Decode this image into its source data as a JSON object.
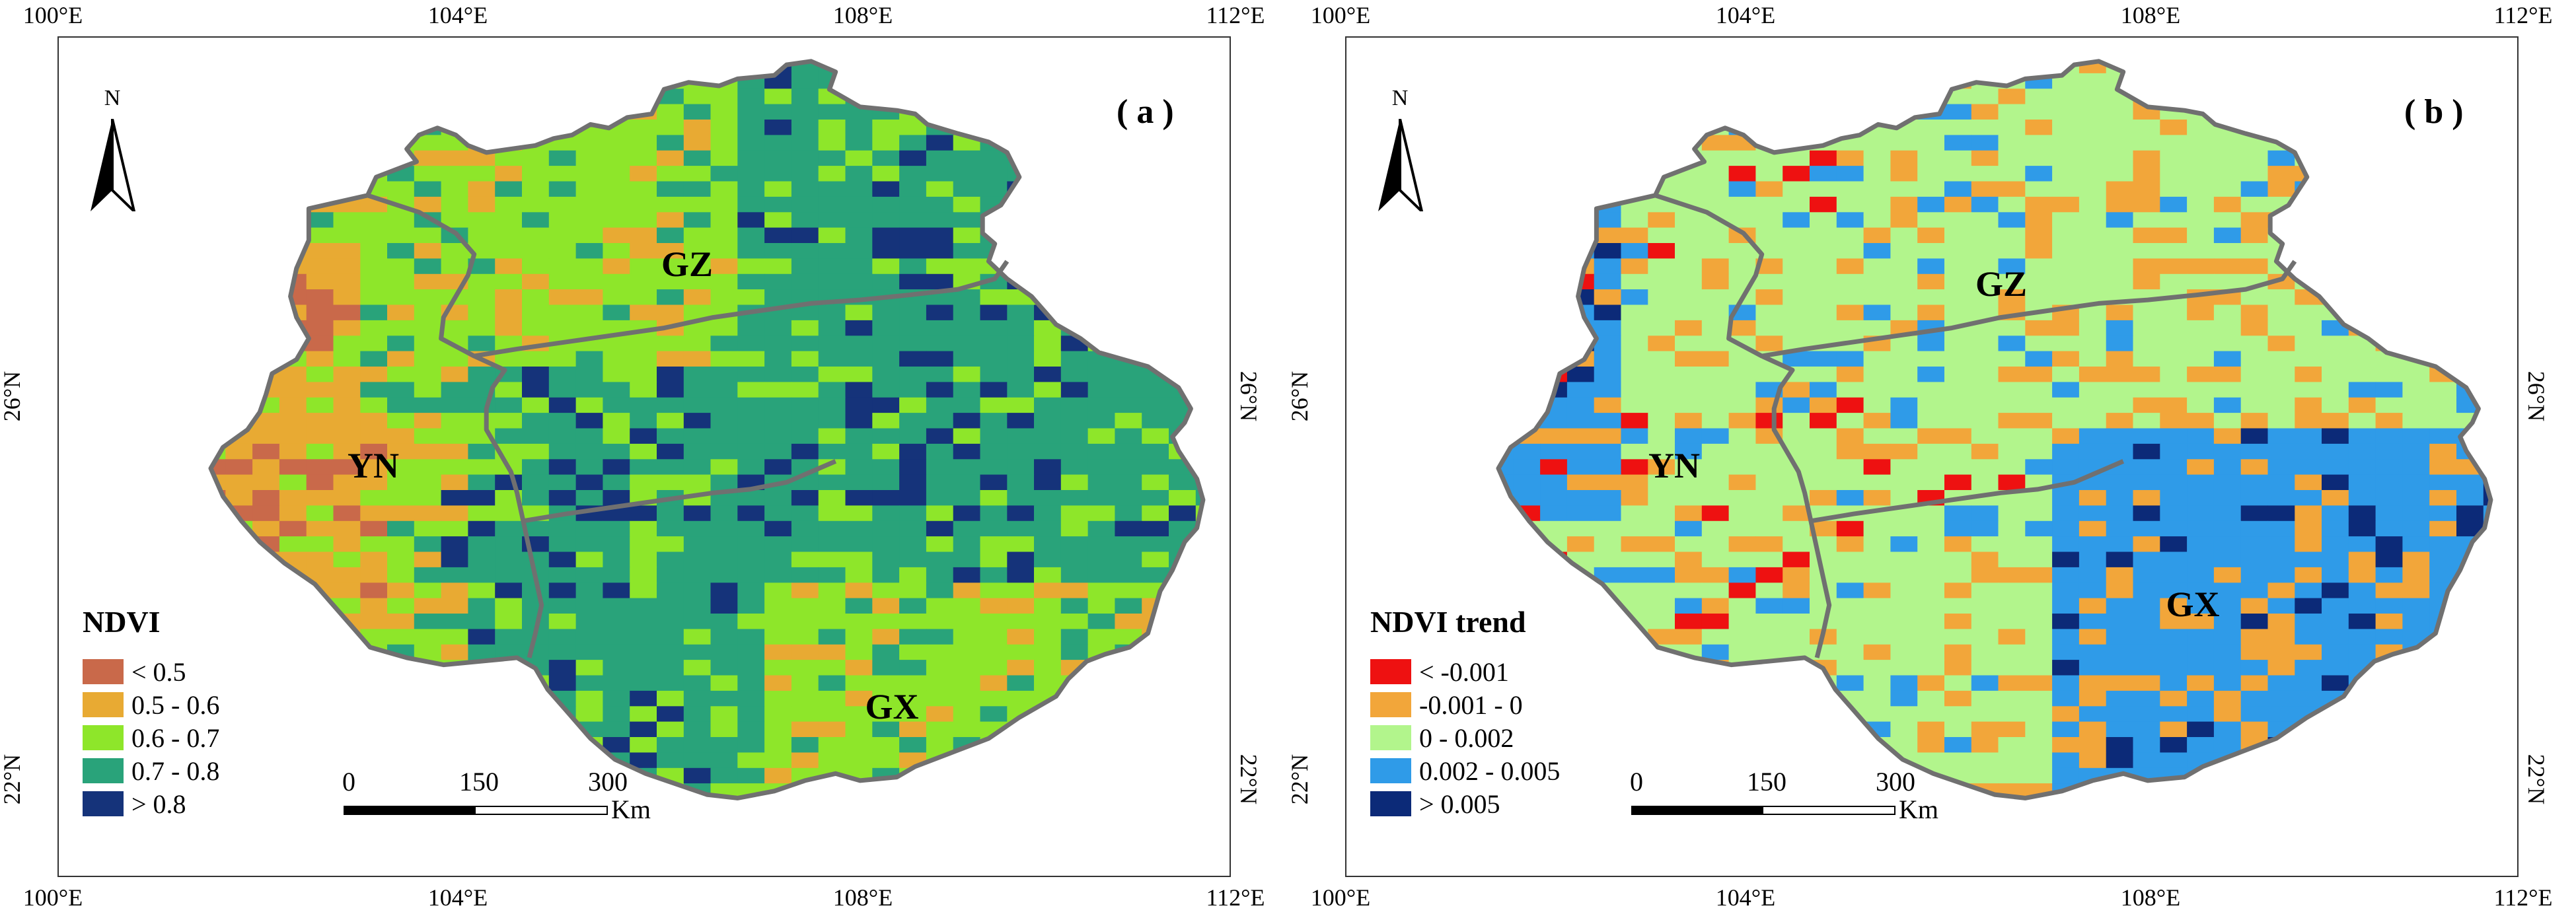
{
  "map_data": {
    "panels": [
      {
        "id": "a",
        "label": "( a )",
        "top_ticks": [
          "100°E",
          "104°E",
          "108°E",
          "112°E"
        ],
        "bottom_ticks": [
          "100°E",
          "104°E",
          "108°E",
          "112°E"
        ],
        "side_ticks": [
          "26°N",
          "22°N"
        ],
        "north_label": "N",
        "regions": [
          "YN",
          "GZ",
          "GX"
        ],
        "legend_title": "NDVI",
        "legend": [
          {
            "label": "< 0.5",
            "color": "#c9694a"
          },
          {
            "label": "0.5 - 0.6",
            "color": "#e8aa33"
          },
          {
            "label": "0.6 - 0.7",
            "color": "#8ee62a"
          },
          {
            "label": "0.7 - 0.8",
            "color": "#29a37a"
          },
          {
            "label": "> 0.8",
            "color": "#15337a"
          }
        ],
        "scale": {
          "ticks": [
            "0",
            "150",
            "300"
          ],
          "unit": "Km"
        }
      },
      {
        "id": "b",
        "label": "( b )",
        "top_ticks": [
          "100°E",
          "104°E",
          "108°E",
          "112°E"
        ],
        "bottom_ticks": [
          "100°E",
          "104°E",
          "108°E",
          "112°E"
        ],
        "side_ticks": [
          "26°N",
          "22°N"
        ],
        "north_label": "N",
        "regions": [
          "YN",
          "GZ",
          "GX"
        ],
        "legend_title": "NDVI trend",
        "legend": [
          {
            "label": "< -0.001",
            "color": "#ee1111"
          },
          {
            "label": "-0.001 - 0",
            "color": "#f2a63a"
          },
          {
            "label": "0 - 0.002",
            "color": "#b2f58c"
          },
          {
            "label": "0.002 - 0.005",
            "color": "#2f9be8"
          },
          {
            "label": "> 0.005",
            "color": "#0c2a78"
          }
        ],
        "scale": {
          "ticks": [
            "0",
            "150",
            "300"
          ],
          "unit": "Km"
        }
      }
    ]
  }
}
